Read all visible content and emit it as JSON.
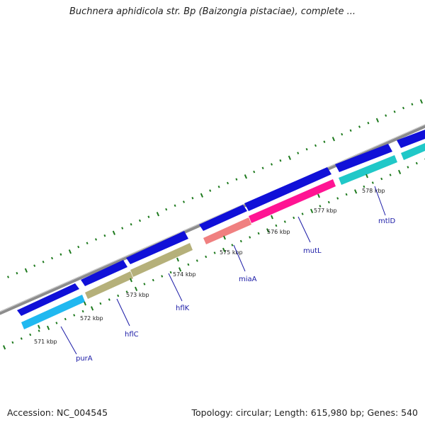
{
  "title": "Buchnera aphidicola str. Bp (Baizongia pistaciae), complete ...",
  "accession": "Accession: NC_004545",
  "summary": "Topology: circular; Length: 615,980 bp; Genes: 540",
  "colors": {
    "backbone": "#8c8c8c",
    "cds": "#1010d8",
    "tick": "#1e7a1e",
    "label_line": "#1a1aa6"
  },
  "scale_labels": [
    "571 kbp",
    "572 kbp",
    "573 kbp",
    "574 kbp",
    "575 kbp",
    "576 kbp",
    "577 kbp",
    "578 kbp"
  ],
  "genes": [
    {
      "name": "purA",
      "color": "#20b8f0"
    },
    {
      "name": "hflC",
      "color": "#b5b07a"
    },
    {
      "name": "hflK",
      "color": "#b5b07a"
    },
    {
      "name": "miaA",
      "color": "#f08080"
    },
    {
      "name": "mutL",
      "color": "#ff1493"
    },
    {
      "name": "mtlD",
      "color": "#20c8c8"
    }
  ]
}
